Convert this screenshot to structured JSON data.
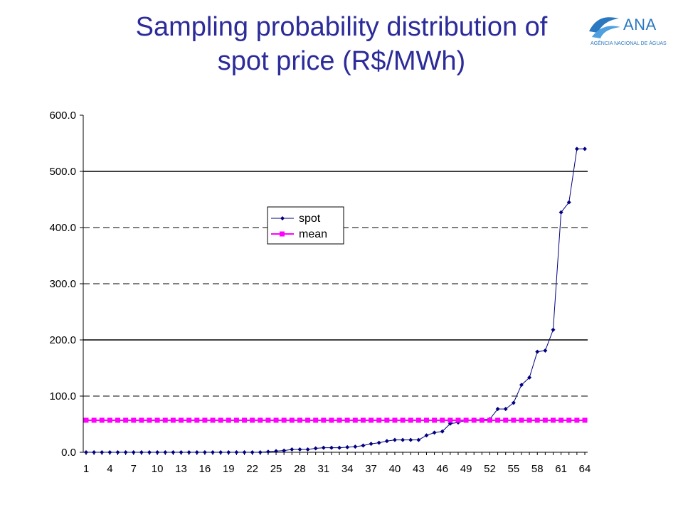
{
  "slide": {
    "title_line1": "Sampling probability distribution of",
    "title_line2": "spot price (R$/MWh)"
  },
  "logo": {
    "name": "ANA",
    "subtitle": "AGÊNCIA NACIONAL DE ÁGUAS",
    "color": "#2a78c0"
  },
  "chart_data": {
    "type": "line",
    "title": "",
    "xlabel": "",
    "ylabel": "",
    "ylim": [
      0,
      600
    ],
    "yticks": [
      "0.0",
      "100.0",
      "200.0",
      "300.0",
      "400.0",
      "500.0",
      "600.0"
    ],
    "xticks": [
      1,
      4,
      7,
      10,
      13,
      16,
      19,
      22,
      25,
      28,
      31,
      34,
      37,
      40,
      43,
      46,
      49,
      52,
      55,
      58,
      61,
      64
    ],
    "x": [
      1,
      2,
      3,
      4,
      5,
      6,
      7,
      8,
      9,
      10,
      11,
      12,
      13,
      14,
      15,
      16,
      17,
      18,
      19,
      20,
      21,
      22,
      23,
      24,
      25,
      26,
      27,
      28,
      29,
      30,
      31,
      32,
      33,
      34,
      35,
      36,
      37,
      38,
      39,
      40,
      41,
      42,
      43,
      44,
      45,
      46,
      47,
      48,
      49,
      50,
      51,
      52,
      53,
      54,
      55,
      56,
      57,
      58,
      59,
      60,
      61,
      62,
      63,
      64
    ],
    "gridlines": {
      "solid": [
        200,
        500
      ],
      "dashed": [
        100,
        300,
        400
      ]
    },
    "legend_position": "center",
    "series": [
      {
        "name": "spot",
        "color": "#000080",
        "marker": "diamond",
        "values": [
          0,
          0,
          0,
          0,
          0,
          0,
          0,
          0,
          0,
          0,
          0,
          0,
          0,
          0,
          0,
          0,
          0,
          0,
          0,
          0,
          0,
          0,
          0,
          1,
          2,
          3,
          5,
          5,
          5,
          7,
          8,
          8,
          8,
          9,
          10,
          12,
          15,
          17,
          20,
          22,
          22,
          22,
          22,
          30,
          35,
          37,
          51,
          53,
          57,
          58,
          58,
          59,
          77,
          77,
          88,
          120,
          133,
          179,
          181,
          218,
          427,
          445,
          540,
          540
        ]
      },
      {
        "name": "mean",
        "color": "#ff00ff",
        "marker": "square",
        "values": [
          57,
          57,
          57,
          57,
          57,
          57,
          57,
          57,
          57,
          57,
          57,
          57,
          57,
          57,
          57,
          57,
          57,
          57,
          57,
          57,
          57,
          57,
          57,
          57,
          57,
          57,
          57,
          57,
          57,
          57,
          57,
          57,
          57,
          57,
          57,
          57,
          57,
          57,
          57,
          57,
          57,
          57,
          57,
          57,
          57,
          57,
          57,
          57,
          57,
          57,
          57,
          57,
          57,
          57,
          57,
          57,
          57,
          57,
          57,
          57,
          57,
          57,
          57,
          57
        ]
      }
    ]
  }
}
